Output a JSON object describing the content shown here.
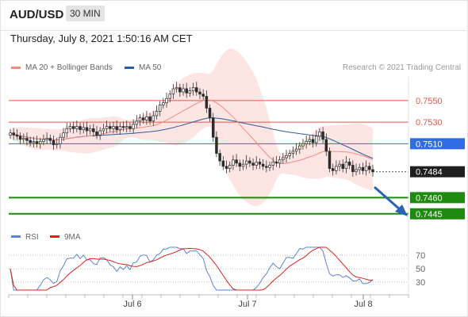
{
  "header": {
    "symbol": "AUD/USD",
    "timeframe": "30 MIN"
  },
  "timestamp": "Thursday, July 8, 2021 1:50:16 AM CET",
  "legend": {
    "ma20": "MA 20 + Bollinger Bands",
    "ma50": "MA 50",
    "ma20_color": "#f28b82",
    "ma50_color": "#2e5b9a"
  },
  "copyright": "Research © 2021 Trading Central",
  "chart_data": [
    {
      "type": "candlestick",
      "title": "AUD/USD 30 MIN",
      "ylim": [
        0.7436,
        0.7572
      ],
      "x_ticks": [
        "Jul 6",
        "Jul 7",
        "Jul 8"
      ],
      "candles_close": [
        0.752,
        0.7518,
        0.7517,
        0.7514,
        0.7515,
        0.7513,
        0.7511,
        0.7512,
        0.751,
        0.7512,
        0.7514,
        0.7515,
        0.7513,
        0.7509,
        0.751,
        0.7516,
        0.752,
        0.7524,
        0.7526,
        0.7524,
        0.7526,
        0.7523,
        0.7525,
        0.7522,
        0.7524,
        0.7521,
        0.7518,
        0.7522,
        0.7524,
        0.7526,
        0.7524,
        0.7526,
        0.7523,
        0.7526,
        0.7525,
        0.7526,
        0.7524,
        0.7528,
        0.7531,
        0.7534,
        0.7532,
        0.7535,
        0.7531,
        0.7536,
        0.754,
        0.7546,
        0.7548,
        0.7552,
        0.7556,
        0.7561,
        0.7562,
        0.7558,
        0.7561,
        0.7557,
        0.7559,
        0.7562,
        0.7558,
        0.7556,
        0.7554,
        0.7543,
        0.7534,
        0.7516,
        0.7501,
        0.7494,
        0.7489,
        0.7487,
        0.749,
        0.7495,
        0.7492,
        0.7489,
        0.7491,
        0.7494,
        0.7492,
        0.749,
        0.7493,
        0.7491,
        0.7489,
        0.7488,
        0.749,
        0.7493,
        0.7492,
        0.7495,
        0.7497,
        0.7499,
        0.7501,
        0.7503,
        0.7505,
        0.7508,
        0.751,
        0.7512,
        0.7514,
        0.7511,
        0.7517,
        0.7521,
        0.7514,
        0.7503,
        0.7487,
        0.7485,
        0.7489,
        0.7491,
        0.7487,
        0.7493,
        0.749,
        0.7484,
        0.7486,
        0.7488,
        0.7485,
        0.7489,
        0.7486,
        0.7484
      ],
      "moving_averages": [
        {
          "name": "MA 20 + Bollinger Bands",
          "color": "#f28b82"
        },
        {
          "name": "MA 50",
          "color": "#2e5b9a"
        }
      ],
      "levels": [
        {
          "label": "0.7550",
          "value": 0.755,
          "kind": "resistance",
          "color": "#e5574b"
        },
        {
          "label": "0.7530",
          "value": 0.753,
          "kind": "resistance",
          "color": "#e5574b"
        },
        {
          "label": "0.7510",
          "value": 0.751,
          "kind": "pivot",
          "color": "#2f6ce5"
        },
        {
          "label": "0.7484",
          "value": 0.7484,
          "kind": "last",
          "color": "#222222"
        },
        {
          "label": "0.7460",
          "value": 0.746,
          "kind": "support",
          "color": "#1e8a10"
        },
        {
          "label": "0.7445",
          "value": 0.7445,
          "kind": "support",
          "color": "#1e8a10"
        }
      ]
    },
    {
      "type": "line",
      "title": "RSI",
      "series": [
        {
          "name": "RSI",
          "color": "#5b86d6"
        },
        {
          "name": "9MA",
          "color": "#e02020"
        }
      ],
      "ylim": [
        18,
        82
      ],
      "y_ticks": [
        70,
        50,
        30
      ]
    }
  ]
}
